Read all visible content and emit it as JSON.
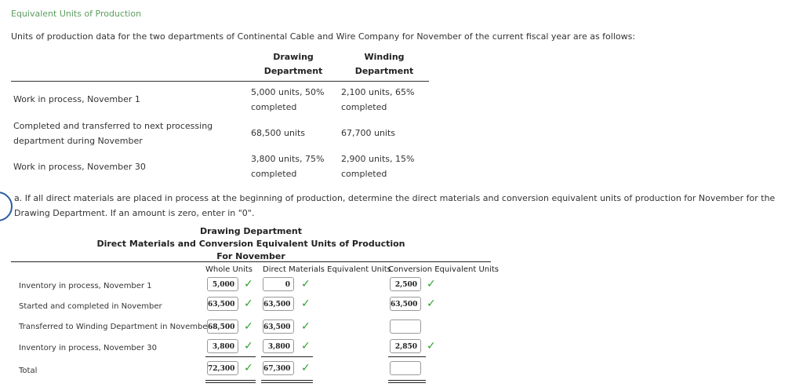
{
  "title": "Equivalent Units of Production",
  "intro": "Units of production data for the two departments of Continental Cable and Wire Company for November of the current fiscal year are as follows:",
  "data_table": {
    "col1_line1": "Drawing",
    "col1_line2": "Department",
    "col2_line1": "Winding",
    "col2_line2": "Department",
    "rows": [
      {
        "label_line1": "Work in process, November 1",
        "label_line2": "",
        "drawing_line1": "5,000 units, 50%",
        "drawing_line2": "completed",
        "winding_line1": "2,100 units, 65%",
        "winding_line2": "completed"
      },
      {
        "label_line1": "Completed and transferred to next processing",
        "label_line2": "department during November",
        "drawing_line1": "68,500 units",
        "drawing_line2": "",
        "winding_line1": "67,700 units",
        "winding_line2": ""
      },
      {
        "label_line1": "Work in process, November 30",
        "label_line2": "",
        "drawing_line1": "3,800 units, 75%",
        "drawing_line2": "completed",
        "winding_line1": "2,900 units, 15%",
        "winding_line2": "completed"
      }
    ]
  },
  "question": "a.  If all direct materials are placed in process at the beginning of production, determine the direct materials and conversion equivalent units of production for November for the Drawing Department. If an amount is zero, enter in \"0\".",
  "schedule": {
    "heading1": "Drawing Department",
    "heading2": "Direct Materials and Conversion Equivalent Units of Production",
    "heading3": "For November",
    "col_whole": "Whole Units",
    "col_dm": "Direct Materials Equivalent Units",
    "col_conv": "Conversion Equivalent Units",
    "check_glyph": "✓",
    "rows": [
      {
        "label": "Inventory in process, November 1",
        "whole": "5,000",
        "dm": "0",
        "conv": "2,500"
      },
      {
        "label": "Started and completed in November",
        "whole": "63,500",
        "dm": "63,500",
        "conv": "63,500"
      },
      {
        "label": "Transferred to Winding Department in November",
        "whole": "68,500",
        "dm": "63,500",
        "conv": ""
      },
      {
        "label": "Inventory in process, November 30",
        "whole": "3,800",
        "dm": "3,800",
        "conv": "2,850"
      },
      {
        "label": "Total",
        "whole": "72,300",
        "dm": "67,300",
        "conv": ""
      }
    ]
  },
  "colors": {
    "title": "#5a9e5f",
    "check": "#2ea12e",
    "circle": "#2a5d9f"
  }
}
